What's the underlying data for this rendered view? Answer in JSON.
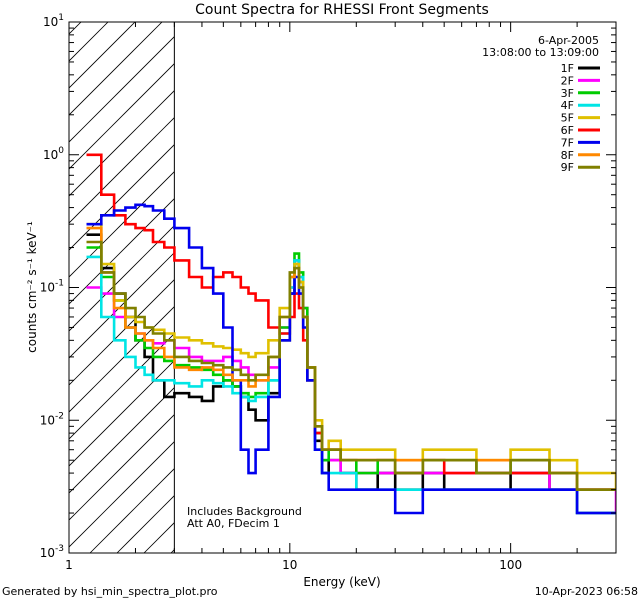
{
  "chart_data": {
    "type": "line",
    "title": "Count Spectra for RHESSI Front Segments",
    "xlabel": "Energy (keV)",
    "ylabel": "counts cm⁻² s⁻¹ keV⁻¹",
    "xscale": "log",
    "yscale": "log",
    "xlim": [
      1,
      300
    ],
    "ylim": [
      0.001,
      10
    ],
    "x_ticks": [
      {
        "value": 1,
        "label": "1"
      },
      {
        "value": 10,
        "label": "10"
      },
      {
        "value": 100,
        "label": "100"
      }
    ],
    "y_ticks": [
      {
        "value": 10,
        "base": "10",
        "exp": "1"
      },
      {
        "value": 1,
        "base": "10",
        "exp": "0"
      },
      {
        "value": 0.1,
        "base": "10",
        "exp": "-1"
      },
      {
        "value": 0.01,
        "base": "10",
        "exp": "-2"
      },
      {
        "value": 0.001,
        "base": "10",
        "exp": "-3"
      }
    ],
    "shaded_region_upper_keV": 3,
    "date_label": "6-Apr-2005",
    "time_range": "13:08:00 to 13:09:00",
    "annotations": [
      "Includes Background",
      "Att A0, FDecim 1"
    ],
    "series": [
      {
        "name": "1F",
        "color": "#000000",
        "x": [
          1.2,
          1.4,
          1.6,
          1.8,
          2,
          2.2,
          2.4,
          2.7,
          3,
          3.5,
          4,
          4.5,
          5,
          5.5,
          6,
          6.5,
          7,
          8,
          9,
          10,
          10.5,
          11,
          11.5,
          12,
          13,
          14,
          15,
          17,
          20,
          25,
          30,
          40,
          50,
          70,
          100,
          150,
          200,
          300
        ],
        "y": [
          0.25,
          0.14,
          0.09,
          0.06,
          0.04,
          0.03,
          0.02,
          0.015,
          0.016,
          0.015,
          0.014,
          0.018,
          0.02,
          0.018,
          0.015,
          0.012,
          0.01,
          0.016,
          0.04,
          0.09,
          0.15,
          0.11,
          0.06,
          0.02,
          0.007,
          0.004,
          0.005,
          0.004,
          0.003,
          0.004,
          0.003,
          0.004,
          0.003,
          0.003,
          0.004,
          0.003,
          0.002,
          0.002
        ]
      },
      {
        "name": "2F",
        "color": "#ff00ff",
        "x": [
          1.2,
          1.4,
          1.6,
          1.8,
          2,
          2.2,
          2.4,
          2.7,
          3,
          3.5,
          4,
          4.5,
          5,
          5.5,
          6,
          6.5,
          7,
          8,
          9,
          10,
          10.5,
          11,
          11.5,
          12,
          13,
          14,
          15,
          17,
          20,
          25,
          30,
          40,
          50,
          70,
          100,
          150,
          200,
          300
        ],
        "y": [
          0.1,
          0.09,
          0.06,
          0.05,
          0.045,
          0.04,
          0.038,
          0.04,
          0.035,
          0.03,
          0.028,
          0.028,
          0.03,
          0.028,
          0.025,
          0.022,
          0.02,
          0.025,
          0.05,
          0.1,
          0.16,
          0.12,
          0.07,
          0.025,
          0.008,
          0.005,
          0.005,
          0.004,
          0.004,
          0.004,
          0.004,
          0.004,
          0.004,
          0.004,
          0.004,
          0.003,
          0.003,
          0.002
        ]
      },
      {
        "name": "3F",
        "color": "#00cc00",
        "x": [
          1.2,
          1.4,
          1.6,
          1.8,
          2,
          2.2,
          2.4,
          2.7,
          3,
          3.5,
          4,
          4.5,
          5,
          5.5,
          6,
          6.5,
          7,
          8,
          9,
          10,
          10.5,
          11,
          11.5,
          12,
          13,
          14,
          15,
          17,
          20,
          25,
          30,
          40,
          50,
          70,
          100,
          150,
          200,
          300
        ],
        "y": [
          0.2,
          0.12,
          0.08,
          0.05,
          0.04,
          0.035,
          0.03,
          0.028,
          0.026,
          0.025,
          0.024,
          0.022,
          0.02,
          0.018,
          0.016,
          0.015,
          0.016,
          0.02,
          0.05,
          0.12,
          0.18,
          0.13,
          0.07,
          0.025,
          0.008,
          0.005,
          0.006,
          0.005,
          0.004,
          0.005,
          0.004,
          0.005,
          0.005,
          0.004,
          0.005,
          0.004,
          0.003,
          0.003
        ]
      },
      {
        "name": "4F",
        "color": "#00e5e5",
        "x": [
          1.2,
          1.4,
          1.6,
          1.8,
          2,
          2.2,
          2.4,
          2.7,
          3,
          3.5,
          4,
          4.5,
          5,
          5.5,
          6,
          6.5,
          7,
          8,
          9,
          10,
          10.5,
          11,
          11.5,
          12,
          13,
          14,
          15,
          17,
          20,
          25,
          30,
          40,
          50,
          70,
          100,
          150,
          200,
          300
        ],
        "y": [
          0.17,
          0.06,
          0.04,
          0.03,
          0.025,
          0.022,
          0.02,
          0.02,
          0.019,
          0.018,
          0.02,
          0.019,
          0.018,
          0.016,
          0.015,
          0.014,
          0.015,
          0.02,
          0.045,
          0.1,
          0.16,
          0.12,
          0.06,
          0.02,
          0.006,
          0.004,
          0.004,
          0.004,
          0.003,
          0.003,
          0.003,
          0.003,
          0.003,
          0.003,
          0.003,
          0.003,
          0.002,
          0.002
        ]
      },
      {
        "name": "5F",
        "color": "#e0c000",
        "x": [
          1.2,
          1.4,
          1.6,
          1.8,
          2,
          2.2,
          2.4,
          2.7,
          3,
          3.5,
          4,
          4.5,
          5,
          5.5,
          6,
          6.5,
          7,
          8,
          9,
          10,
          10.5,
          11,
          11.5,
          12,
          13,
          14,
          15,
          17,
          20,
          25,
          30,
          40,
          50,
          70,
          100,
          150,
          200,
          300
        ],
        "y": [
          0.3,
          0.15,
          0.08,
          0.06,
          0.055,
          0.05,
          0.048,
          0.045,
          0.042,
          0.04,
          0.038,
          0.036,
          0.035,
          0.034,
          0.032,
          0.03,
          0.032,
          0.04,
          0.07,
          0.12,
          0.15,
          0.11,
          0.06,
          0.025,
          0.01,
          0.006,
          0.007,
          0.006,
          0.006,
          0.006,
          0.005,
          0.006,
          0.006,
          0.005,
          0.006,
          0.005,
          0.004,
          0.003
        ]
      },
      {
        "name": "6F",
        "color": "#ff0000",
        "x": [
          1.2,
          1.4,
          1.6,
          1.8,
          2,
          2.2,
          2.4,
          2.7,
          3,
          3.5,
          4,
          4.5,
          5,
          5.5,
          6,
          6.5,
          7,
          8,
          9,
          10,
          10.5,
          11,
          11.5,
          12,
          13,
          14,
          15,
          17,
          20,
          25,
          30,
          40,
          50,
          70,
          100,
          150,
          200,
          300
        ],
        "y": [
          1.0,
          0.5,
          0.35,
          0.3,
          0.28,
          0.27,
          0.22,
          0.2,
          0.16,
          0.12,
          0.1,
          0.12,
          0.13,
          0.12,
          0.1,
          0.09,
          0.08,
          0.05,
          0.045,
          0.06,
          0.09,
          0.07,
          0.04,
          0.02,
          0.008,
          0.006,
          0.006,
          0.005,
          0.005,
          0.005,
          0.004,
          0.005,
          0.004,
          0.004,
          0.004,
          0.004,
          0.003,
          0.003
        ]
      },
      {
        "name": "7F",
        "color": "#0000ee",
        "x": [
          1.2,
          1.4,
          1.6,
          1.8,
          2,
          2.2,
          2.4,
          2.7,
          3,
          3.5,
          4,
          4.5,
          5,
          5.5,
          6,
          6.5,
          7,
          8,
          9,
          10,
          10.5,
          11,
          11.5,
          12,
          13,
          14,
          15,
          17,
          20,
          25,
          30,
          40,
          50,
          70,
          100,
          150,
          200,
          300
        ],
        "y": [
          0.3,
          0.35,
          0.38,
          0.4,
          0.42,
          0.41,
          0.38,
          0.33,
          0.28,
          0.2,
          0.14,
          0.09,
          0.05,
          0.02,
          0.006,
          0.004,
          0.006,
          0.015,
          0.04,
          0.09,
          0.12,
          0.09,
          0.05,
          0.02,
          0.006,
          0.004,
          0.003,
          0.003,
          0.003,
          0.003,
          0.002,
          0.003,
          0.003,
          0.003,
          0.003,
          0.003,
          0.002,
          0.002
        ]
      },
      {
        "name": "8F",
        "color": "#ff8800",
        "x": [
          1.2,
          1.4,
          1.6,
          1.8,
          2,
          2.2,
          2.4,
          2.7,
          3,
          3.5,
          4,
          4.5,
          5,
          5.5,
          6,
          6.5,
          7,
          8,
          9,
          10,
          10.5,
          11,
          11.5,
          12,
          13,
          14,
          15,
          17,
          20,
          25,
          30,
          40,
          50,
          70,
          100,
          150,
          200,
          300
        ],
        "y": [
          0.28,
          0.13,
          0.07,
          0.05,
          0.045,
          0.04,
          0.035,
          0.03,
          0.025,
          0.024,
          0.025,
          0.024,
          0.022,
          0.02,
          0.02,
          0.018,
          0.02,
          0.03,
          0.06,
          0.12,
          0.14,
          0.1,
          0.06,
          0.025,
          0.009,
          0.006,
          0.006,
          0.005,
          0.005,
          0.005,
          0.005,
          0.005,
          0.005,
          0.005,
          0.005,
          0.004,
          0.003,
          0.003
        ]
      },
      {
        "name": "9F",
        "color": "#808000",
        "x": [
          1.2,
          1.4,
          1.6,
          1.8,
          2,
          2.2,
          2.4,
          2.7,
          3,
          3.5,
          4,
          4.5,
          5,
          5.5,
          6,
          6.5,
          7,
          8,
          9,
          10,
          10.5,
          11,
          11.5,
          12,
          13,
          14,
          15,
          17,
          20,
          25,
          30,
          40,
          50,
          70,
          100,
          150,
          200,
          300
        ],
        "y": [
          0.22,
          0.13,
          0.09,
          0.07,
          0.06,
          0.05,
          0.045,
          0.04,
          0.03,
          0.028,
          0.027,
          0.026,
          0.025,
          0.024,
          0.022,
          0.02,
          0.022,
          0.03,
          0.06,
          0.13,
          0.14,
          0.1,
          0.06,
          0.025,
          0.009,
          0.006,
          0.006,
          0.005,
          0.005,
          0.005,
          0.004,
          0.005,
          0.005,
          0.004,
          0.005,
          0.004,
          0.003,
          0.003
        ]
      }
    ]
  },
  "footer": {
    "left": "Generated by hsi_min_spectra_plot.pro",
    "right": "10-Apr-2023 06:58"
  }
}
